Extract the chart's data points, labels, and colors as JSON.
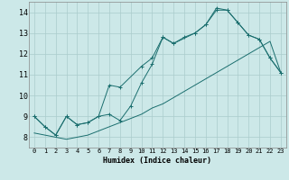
{
  "title": "",
  "xlabel": "Humidex (Indice chaleur)",
  "bg_color": "#cce8e8",
  "grid_color": "#aacccc",
  "line_color": "#1a6e6e",
  "xlim": [
    -0.5,
    23.5
  ],
  "ylim": [
    7.5,
    14.5
  ],
  "xticks": [
    0,
    1,
    2,
    3,
    4,
    5,
    6,
    7,
    8,
    9,
    10,
    11,
    12,
    13,
    14,
    15,
    16,
    17,
    18,
    19,
    20,
    21,
    22,
    23
  ],
  "yticks": [
    8,
    9,
    10,
    11,
    12,
    13,
    14
  ],
  "line1_x": [
    0,
    1,
    2,
    3,
    4,
    5,
    6,
    7,
    8,
    10,
    11,
    12,
    13,
    15,
    16,
    17,
    18,
    19,
    20,
    21,
    22,
    23
  ],
  "line1_y": [
    9.0,
    8.5,
    8.1,
    9.0,
    8.6,
    8.7,
    9.0,
    10.5,
    10.4,
    11.4,
    11.8,
    12.8,
    12.5,
    13.0,
    13.4,
    14.1,
    14.1,
    13.5,
    12.9,
    12.7,
    11.8,
    11.1
  ],
  "line2_x": [
    0,
    1,
    2,
    3,
    4,
    5,
    6,
    7,
    8,
    9,
    10,
    11,
    12,
    13,
    14,
    15,
    16,
    17,
    18,
    19,
    20,
    21,
    22,
    23
  ],
  "line2_y": [
    8.2,
    8.1,
    8.0,
    7.9,
    8.0,
    8.1,
    8.3,
    8.5,
    8.7,
    8.9,
    9.1,
    9.4,
    9.6,
    9.9,
    10.2,
    10.5,
    10.8,
    11.1,
    11.4,
    11.7,
    12.0,
    12.3,
    12.6,
    11.1
  ],
  "line3_x": [
    0,
    1,
    2,
    3,
    4,
    5,
    6,
    7,
    8,
    9,
    10,
    11,
    12,
    13,
    14,
    15,
    16,
    17,
    18,
    19,
    20,
    21,
    22,
    23
  ],
  "line3_y": [
    9.0,
    8.5,
    8.1,
    9.0,
    8.6,
    8.7,
    9.0,
    9.1,
    8.8,
    9.5,
    10.6,
    11.5,
    12.8,
    12.5,
    12.8,
    13.0,
    13.4,
    14.2,
    14.1,
    13.5,
    12.9,
    12.7,
    11.8,
    11.1
  ]
}
